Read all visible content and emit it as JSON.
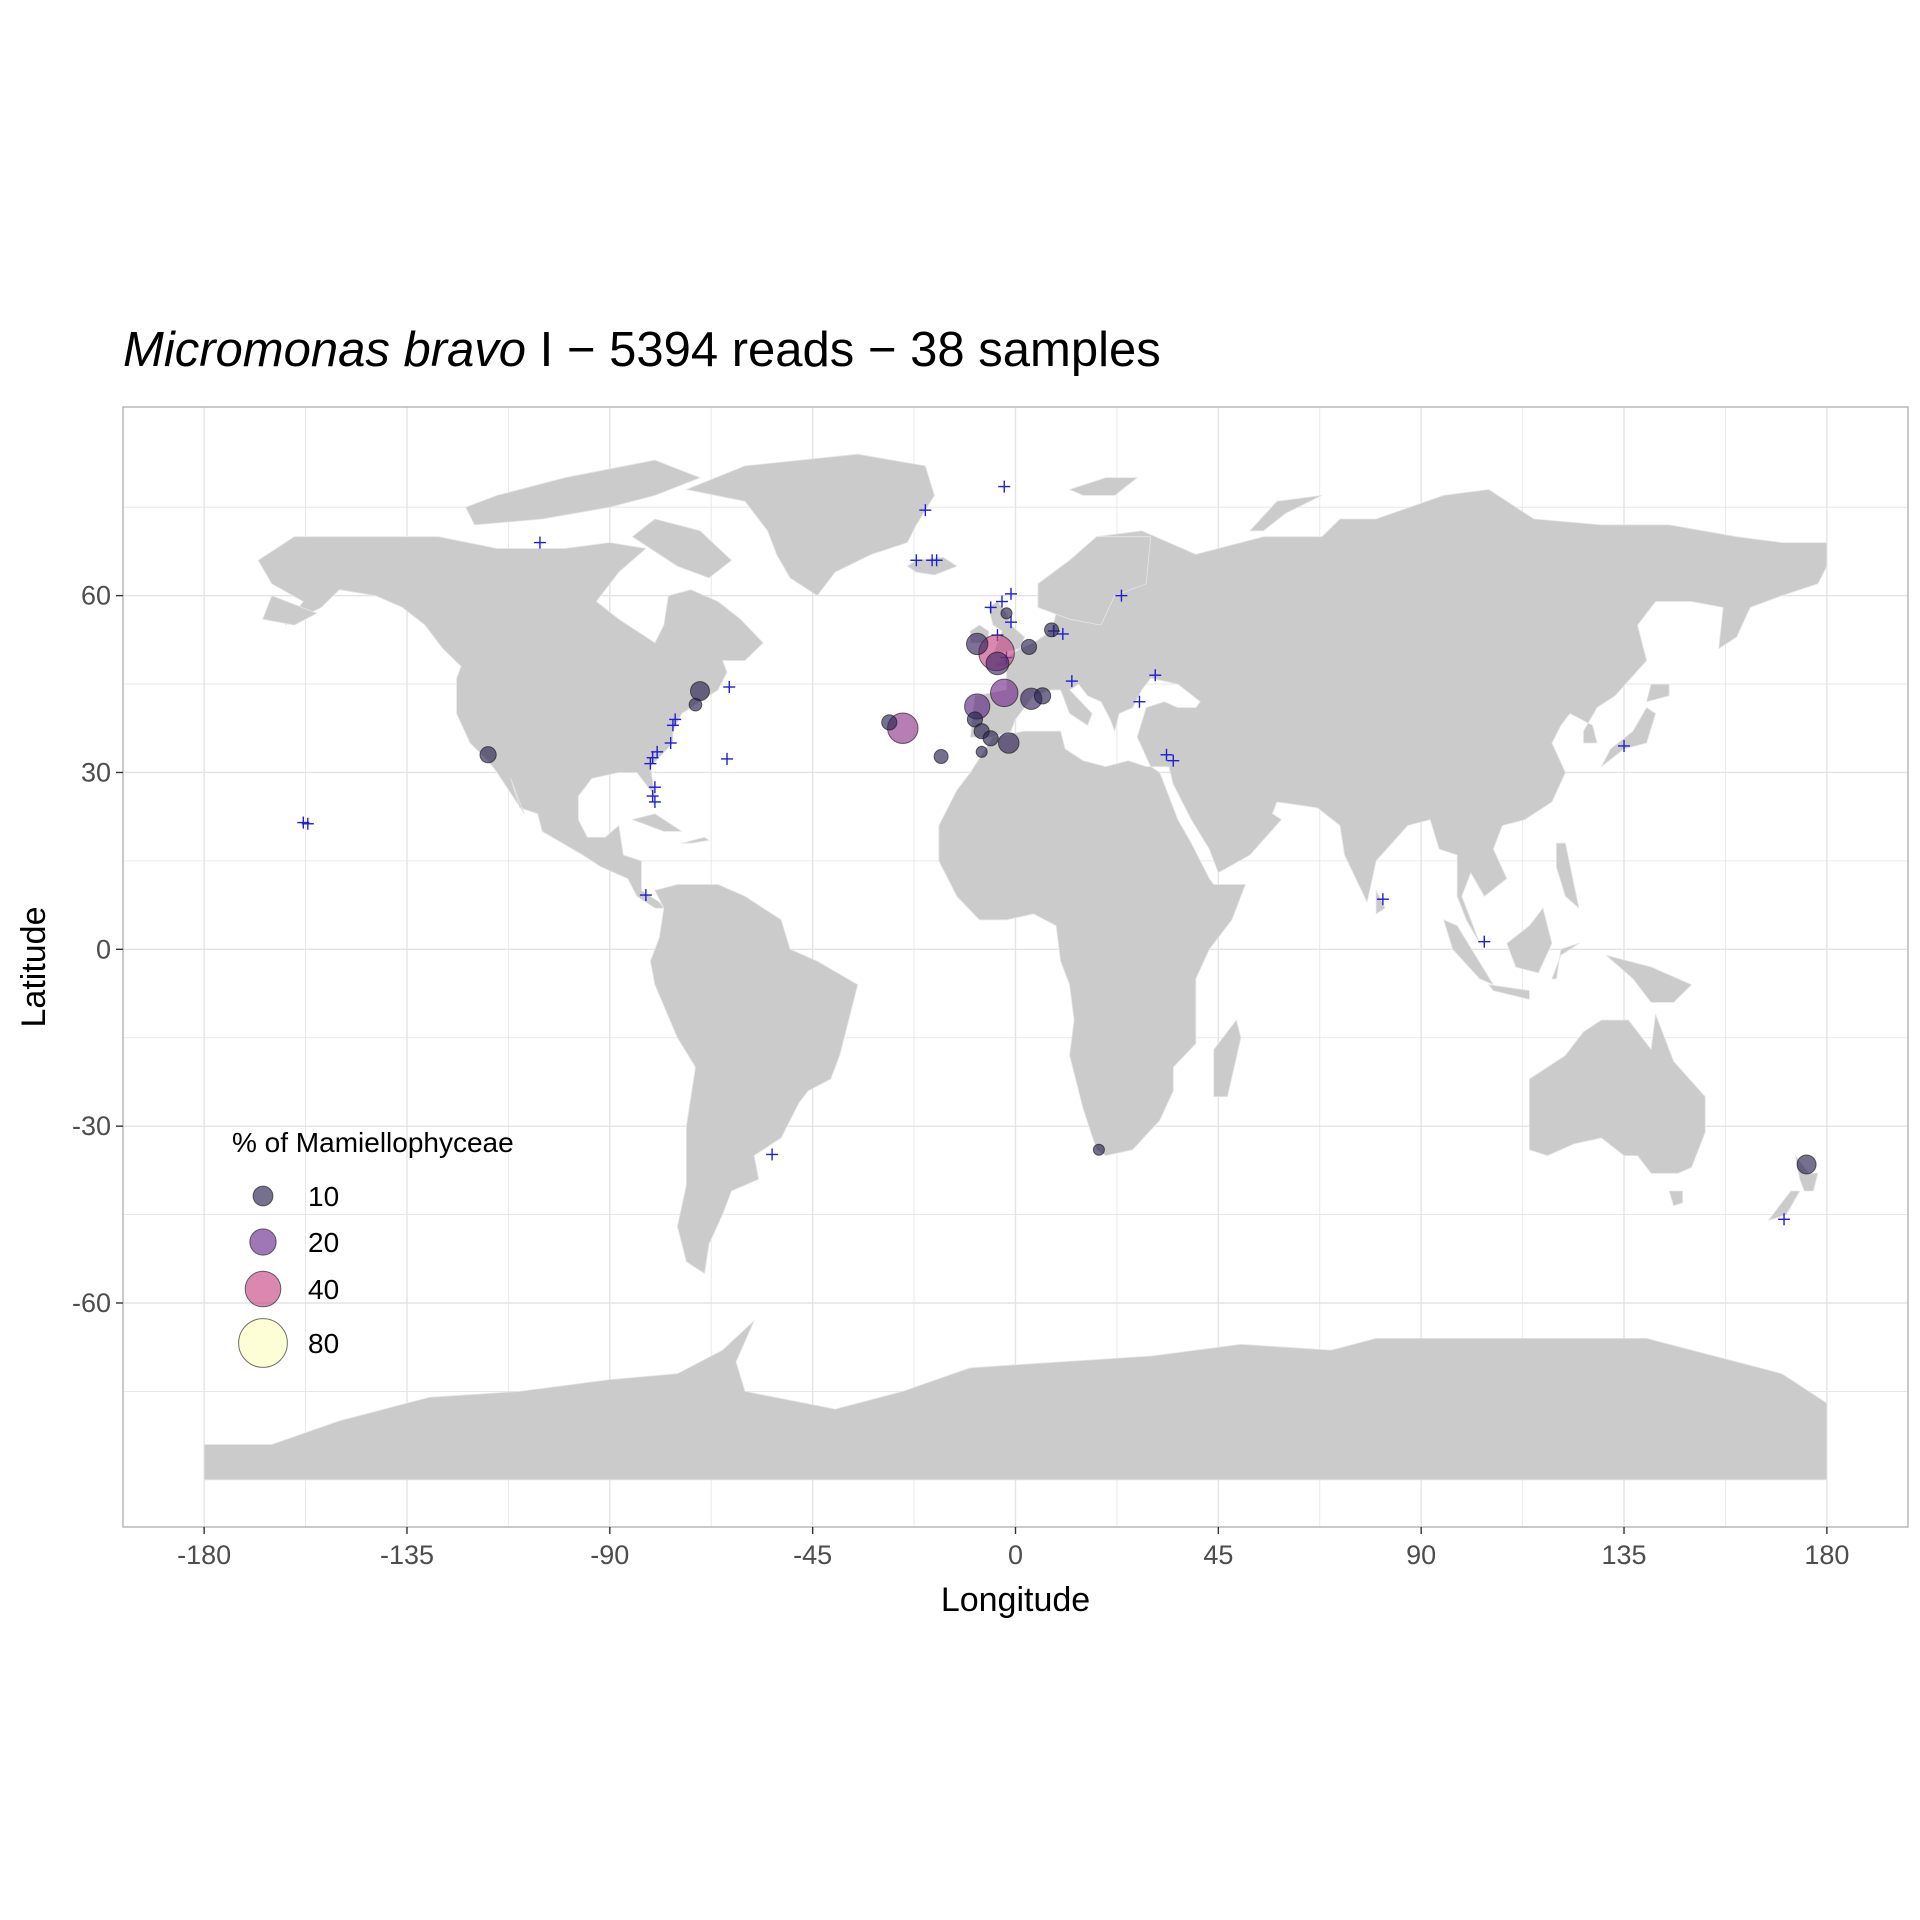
{
  "title": {
    "species_italic": "Micromonas bravo",
    "rest": " I − 5394 reads − 38 samples"
  },
  "colors": {
    "land": "#cbcbcb",
    "border": "#e6e6e6",
    "grid": "#e4e4e4",
    "panel_border": "#b3b3b3",
    "plus": "#1f1fd1",
    "scale_10": "#2a2350",
    "scale_20": "#6b2d8f",
    "scale_40": "#c44a86",
    "scale_80": "#fcfdbf"
  },
  "chart_data": {
    "type": "scatter",
    "title": "Micromonas bravo I − 5394 reads − 38 samples",
    "xlabel": "Longitude",
    "ylabel": "Latitude",
    "xlim": [
      -198,
      198
    ],
    "ylim": [
      -98,
      92
    ],
    "x_ticks": [
      -180,
      -135,
      -90,
      -45,
      0,
      45,
      90,
      135,
      180
    ],
    "y_ticks": [
      -60,
      -30,
      0,
      30,
      60
    ],
    "x_tick_labels": [
      "-180",
      "-135",
      "-90",
      "-45",
      "0",
      "45",
      "90",
      "135",
      "180"
    ],
    "y_tick_labels": [
      "-60",
      "-30",
      "0",
      "30",
      "60"
    ],
    "grid": true,
    "legend": {
      "title": "% of Mamiellophyceae",
      "placement": "bottom-left",
      "entries": [
        {
          "label": "10",
          "value": 10
        },
        {
          "label": "20",
          "value": 20
        },
        {
          "label": "40",
          "value": 40
        },
        {
          "label": "80",
          "value": 80
        }
      ]
    },
    "samples": [
      {
        "lon": -4.2,
        "lat": 50.3,
        "pct": 40
      },
      {
        "lon": -8.5,
        "lat": 51.8,
        "pct": 12
      },
      {
        "lon": -4.0,
        "lat": 48.5,
        "pct": 14
      },
      {
        "lon": -2.5,
        "lat": 43.5,
        "pct": 22
      },
      {
        "lon": 3.5,
        "lat": 42.5,
        "pct": 12
      },
      {
        "lon": -8.5,
        "lat": 41.2,
        "pct": 18
      },
      {
        "lon": -25.0,
        "lat": 37.5,
        "pct": 28
      },
      {
        "lon": -1.5,
        "lat": 35.0,
        "pct": 11
      },
      {
        "lon": -117.0,
        "lat": 33.0,
        "pct": 6
      },
      {
        "lon": -70.0,
        "lat": 43.8,
        "pct": 9
      },
      {
        "lon": 175.5,
        "lat": -36.5,
        "pct": 9
      },
      {
        "lon": 8.0,
        "lat": 54.2,
        "pct": 4
      },
      {
        "lon": 6.0,
        "lat": 43.0,
        "pct": 6
      },
      {
        "lon": -9.0,
        "lat": 39.0,
        "pct": 5
      },
      {
        "lon": -7.5,
        "lat": 37.0,
        "pct": 5
      },
      {
        "lon": -5.5,
        "lat": 35.8,
        "pct": 5
      },
      {
        "lon": -16.5,
        "lat": 32.7,
        "pct": 4
      },
      {
        "lon": -28.0,
        "lat": 38.5,
        "pct": 5
      },
      {
        "lon": -71.0,
        "lat": 41.5,
        "pct": 3
      },
      {
        "lon": 3.0,
        "lat": 51.3,
        "pct": 5
      },
      {
        "lon": -2.0,
        "lat": 57.0,
        "pct": 2
      },
      {
        "lon": -7.5,
        "lat": 33.5,
        "pct": 2
      },
      {
        "lon": 18.5,
        "lat": -34.0,
        "pct": 2
      }
    ],
    "plus_points": [
      {
        "lon": -2.5,
        "lat": 78.5
      },
      {
        "lon": -20.0,
        "lat": 74.5
      },
      {
        "lon": -22.0,
        "lat": 66.0
      },
      {
        "lon": -18.5,
        "lat": 66.0
      },
      {
        "lon": -17.5,
        "lat": 66.0
      },
      {
        "lon": -105.5,
        "lat": 69.0
      },
      {
        "lon": -1.0,
        "lat": 60.3
      },
      {
        "lon": -3.0,
        "lat": 59.0
      },
      {
        "lon": -5.5,
        "lat": 58.0
      },
      {
        "lon": -1.0,
        "lat": 55.5
      },
      {
        "lon": -4.0,
        "lat": 53.3
      },
      {
        "lon": 8.5,
        "lat": 54.0
      },
      {
        "lon": 23.5,
        "lat": 60.0
      },
      {
        "lon": 12.5,
        "lat": 45.5
      },
      {
        "lon": 31.0,
        "lat": 46.5
      },
      {
        "lon": 27.5,
        "lat": 42.0
      },
      {
        "lon": 33.5,
        "lat": 33.0
      },
      {
        "lon": 35.0,
        "lat": 32.0
      },
      {
        "lon": -64.0,
        "lat": 32.3
      },
      {
        "lon": -63.5,
        "lat": 44.5
      },
      {
        "lon": -75.5,
        "lat": 39.0
      },
      {
        "lon": -76.0,
        "lat": 38.0
      },
      {
        "lon": -76.5,
        "lat": 35.0
      },
      {
        "lon": -79.5,
        "lat": 33.5
      },
      {
        "lon": -80.5,
        "lat": 32.5
      },
      {
        "lon": -81.0,
        "lat": 31.5
      },
      {
        "lon": -80.0,
        "lat": 27.5
      },
      {
        "lon": -80.5,
        "lat": 26.0
      },
      {
        "lon": -80.0,
        "lat": 25.0
      },
      {
        "lon": -157.0,
        "lat": 21.3
      },
      {
        "lon": -158.0,
        "lat": 21.5
      },
      {
        "lon": -82.0,
        "lat": 9.2
      },
      {
        "lon": -54.0,
        "lat": -34.8
      },
      {
        "lon": 135.0,
        "lat": 34.5
      },
      {
        "lon": 81.5,
        "lat": 8.5
      },
      {
        "lon": 104.0,
        "lat": 1.3
      },
      {
        "lon": 170.5,
        "lat": -45.8
      },
      {
        "lon": 10.5,
        "lat": 53.5
      },
      {
        "lon": -2.0,
        "lat": 49.5
      }
    ]
  }
}
